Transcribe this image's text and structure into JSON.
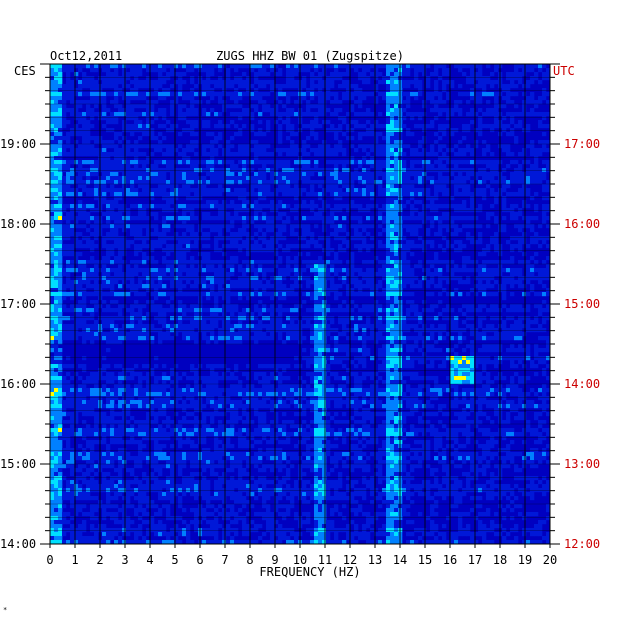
{
  "header": {
    "date": "Oct12,2011",
    "station": "ZUGS HHZ BW 01 (Zugspitze)"
  },
  "footer": {
    "mark": "*"
  },
  "chart_data": {
    "type": "heatmap",
    "title": "ZUGS HHZ BW 01 (Zugspitze)",
    "date": "Oct12,2011",
    "xlabel": "FREQUENCY (HZ)",
    "x_ticks": [
      "0",
      "1",
      "2",
      "3",
      "4",
      "5",
      "6",
      "7",
      "8",
      "9",
      "10",
      "11",
      "12",
      "13",
      "14",
      "15",
      "16",
      "17",
      "18",
      "19",
      "20"
    ],
    "xlim": [
      0,
      20
    ],
    "left_axis": {
      "label": "CES",
      "ticks": [
        "19:00",
        "18:00",
        "17:00",
        "16:00",
        "15:00",
        "14:00"
      ],
      "range": [
        "14:00",
        "19:50"
      ]
    },
    "right_axis": {
      "label": "UTC",
      "ticks": [
        "17:00",
        "16:00",
        "15:00",
        "14:00",
        "13:00",
        "12:00"
      ],
      "range": [
        "12:00",
        "17:50"
      ],
      "color": "#cc0000"
    },
    "grid": true,
    "colors": {
      "background": "#0000c0",
      "low": "#0018d8",
      "mid": "#0080ff",
      "high": "#00e0ff",
      "peak": "#ffff00",
      "max": "#ff2000",
      "utc_text": "#cc0000"
    },
    "features": [
      {
        "frequency_hz": [
          0,
          0.5
        ],
        "time": "all",
        "level": "high"
      },
      {
        "frequency_hz": [
          10.5,
          11.0
        ],
        "time": "14:00-17:30 CES",
        "level": "high"
      },
      {
        "frequency_hz": [
          13.5,
          14.0
        ],
        "time": "all",
        "level": "high"
      },
      {
        "frequency_hz": [
          16.0,
          17.0
        ],
        "time": "16:00-16:20 CES",
        "level": "peak"
      },
      {
        "frequency_hz": [
          0,
          10
        ],
        "time": "16:15-16:30 CES",
        "level": "low"
      }
    ]
  }
}
